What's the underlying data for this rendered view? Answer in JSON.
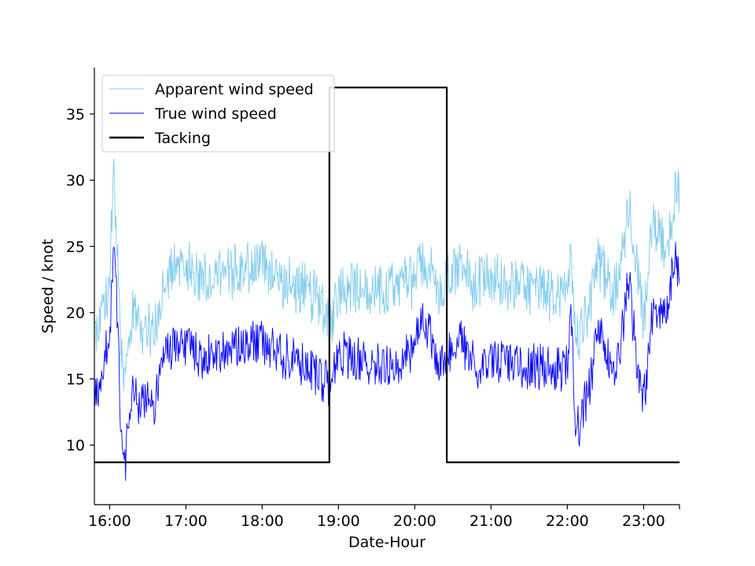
{
  "chart_data": {
    "type": "line",
    "title": "",
    "xlabel": "Date-Hour",
    "ylabel": "Speed / knot",
    "xlim_hours": [
      15.8,
      23.47
    ],
    "ylim": [
      5.5,
      38.5
    ],
    "x_ticks": [
      {
        "value": 16,
        "label": "16:00"
      },
      {
        "value": 17,
        "label": "17:00"
      },
      {
        "value": 18,
        "label": "18:00"
      },
      {
        "value": 19,
        "label": "19:00"
      },
      {
        "value": 20,
        "label": "20:00"
      },
      {
        "value": 21,
        "label": "21:00"
      },
      {
        "value": 22,
        "label": "22:00"
      },
      {
        "value": 23,
        "label": "23:00"
      }
    ],
    "y_ticks": [
      {
        "value": 10,
        "label": "10"
      },
      {
        "value": 15,
        "label": "15"
      },
      {
        "value": 20,
        "label": "20"
      },
      {
        "value": 25,
        "label": "25"
      },
      {
        "value": 30,
        "label": "30"
      },
      {
        "value": 35,
        "label": "35"
      }
    ],
    "legend_position": "top-left",
    "series": [
      {
        "name": "Apparent wind speed",
        "color": "#87ceeb",
        "x": [
          15.8,
          15.9,
          16.0,
          16.05,
          16.1,
          16.15,
          16.2,
          16.3,
          16.4,
          16.5,
          16.6,
          16.7,
          16.8,
          17.0,
          17.2,
          17.4,
          17.6,
          17.8,
          18.0,
          18.2,
          18.4,
          18.6,
          18.8,
          18.9,
          19.0,
          19.2,
          19.4,
          19.6,
          19.8,
          20.0,
          20.1,
          20.2,
          20.3,
          20.4,
          20.5,
          20.6,
          20.8,
          21.0,
          21.2,
          21.4,
          21.6,
          21.8,
          22.0,
          22.05,
          22.1,
          22.15,
          22.2,
          22.3,
          22.4,
          22.5,
          22.6,
          22.7,
          22.8,
          22.9,
          23.0,
          23.1,
          23.2,
          23.3,
          23.4,
          23.47
        ],
        "y": [
          18.5,
          20.0,
          22.0,
          31.0,
          24.0,
          17.0,
          14.5,
          20.0,
          19.0,
          19.0,
          18.5,
          22.5,
          23.5,
          23.5,
          22.5,
          23.0,
          23.0,
          23.5,
          24.0,
          22.5,
          22.0,
          21.5,
          20.5,
          19.0,
          22.0,
          22.0,
          21.5,
          21.5,
          22.0,
          22.5,
          24.0,
          23.5,
          21.0,
          22.5,
          23.0,
          23.5,
          22.0,
          22.5,
          22.0,
          22.0,
          21.5,
          21.5,
          22.0,
          24.0,
          20.0,
          18.5,
          19.0,
          21.0,
          24.0,
          23.0,
          21.5,
          23.0,
          28.0,
          24.0,
          19.0,
          26.0,
          27.0,
          24.0,
          29.0,
          28.5
        ]
      },
      {
        "name": "True wind speed",
        "color": "#0000ff",
        "x": [
          15.8,
          15.9,
          16.0,
          16.05,
          16.1,
          16.15,
          16.2,
          16.3,
          16.4,
          16.5,
          16.6,
          16.7,
          16.8,
          17.0,
          17.2,
          17.4,
          17.6,
          17.8,
          18.0,
          18.2,
          18.4,
          18.6,
          18.8,
          18.9,
          19.0,
          19.2,
          19.4,
          19.6,
          19.8,
          20.0,
          20.1,
          20.2,
          20.3,
          20.4,
          20.5,
          20.6,
          20.8,
          21.0,
          21.2,
          21.4,
          21.6,
          21.8,
          22.0,
          22.05,
          22.1,
          22.15,
          22.2,
          22.3,
          22.4,
          22.5,
          22.6,
          22.7,
          22.8,
          22.9,
          23.0,
          23.1,
          23.2,
          23.3,
          23.4,
          23.47
        ],
        "y": [
          13.0,
          16.0,
          18.0,
          25.0,
          20.0,
          11.0,
          8.5,
          14.0,
          13.0,
          13.5,
          13.0,
          17.0,
          17.5,
          17.5,
          16.5,
          17.0,
          17.5,
          17.5,
          18.0,
          17.0,
          16.5,
          16.0,
          15.0,
          14.5,
          17.0,
          16.5,
          16.0,
          16.0,
          16.5,
          17.5,
          20.0,
          18.5,
          15.5,
          17.0,
          17.0,
          18.0,
          16.0,
          16.5,
          16.5,
          16.0,
          16.0,
          15.5,
          16.0,
          20.0,
          12.5,
          11.0,
          12.5,
          15.0,
          18.5,
          17.5,
          15.5,
          17.5,
          23.0,
          17.0,
          13.0,
          19.5,
          20.0,
          19.5,
          24.0,
          23.0
        ]
      },
      {
        "name": "Tacking",
        "color": "#000000",
        "x": [
          15.8,
          18.88,
          18.88,
          20.42,
          20.42,
          23.47
        ],
        "y": [
          8.7,
          8.7,
          37.0,
          37.0,
          8.7,
          8.7
        ]
      }
    ]
  }
}
